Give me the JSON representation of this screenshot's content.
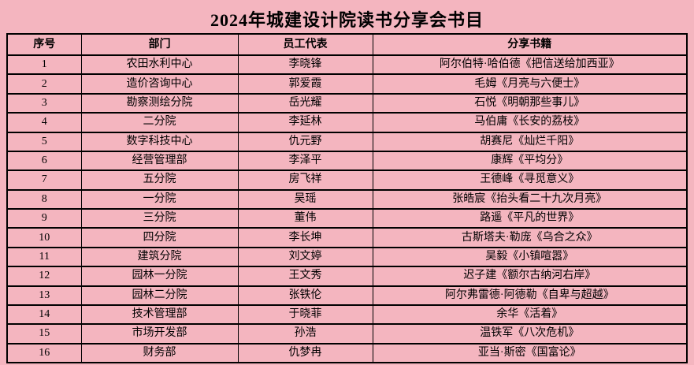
{
  "page": {
    "background_color": "#f4b5bf",
    "border_color": "#000000",
    "text_color": "#000000"
  },
  "title": "2024年城建设计院读书分享会书目",
  "table": {
    "header_keys": [
      "index",
      "department",
      "representative",
      "book"
    ],
    "headers": [
      "序号",
      "部门",
      "员工代表",
      "分享书籍"
    ],
    "rows": [
      [
        "1",
        "农田水利中心",
        "李晓锋",
        "阿尔伯特·哈伯德《把信送给加西亚》"
      ],
      [
        "2",
        "造价咨询中心",
        "郭爱霞",
        "毛姆《月亮与六便士》"
      ],
      [
        "3",
        "勘察测绘分院",
        "岳光耀",
        "石悦《明朝那些事儿》"
      ],
      [
        "4",
        "二分院",
        "李延林",
        "马伯庸《长安的荔枝》"
      ],
      [
        "5",
        "数字科技中心",
        "仇元野",
        "胡赛尼《灿烂千阳》"
      ],
      [
        "6",
        "经营管理部",
        "李泽平",
        "康辉《平均分》"
      ],
      [
        "7",
        "五分院",
        "房飞祥",
        "王德峰《寻觅意义》"
      ],
      [
        "8",
        "一分院",
        "吴瑶",
        "张皓宸《抬头看二十九次月亮》"
      ],
      [
        "9",
        "三分院",
        "董伟",
        "路遥《平凡的世界》"
      ],
      [
        "10",
        "四分院",
        "李长坤",
        "古斯塔夫·勒庞《乌合之众》"
      ],
      [
        "11",
        "建筑分院",
        "刘文婷",
        "吴毅《小镇喧嚣》"
      ],
      [
        "12",
        "园林一分院",
        "王文秀",
        "迟子建《额尔古纳河右岸》"
      ],
      [
        "13",
        "园林二分院",
        "张铁伦",
        "阿尔弗雷德·阿德勒《自卑与超越》"
      ],
      [
        "14",
        "技术管理部",
        "于晓菲",
        "余华《活着》"
      ],
      [
        "15",
        "市场开发部",
        "孙浩",
        "温铁军《八次危机》"
      ],
      [
        "16",
        "财务部",
        "仇梦冉",
        "亚当·斯密《国富论》"
      ]
    ]
  }
}
